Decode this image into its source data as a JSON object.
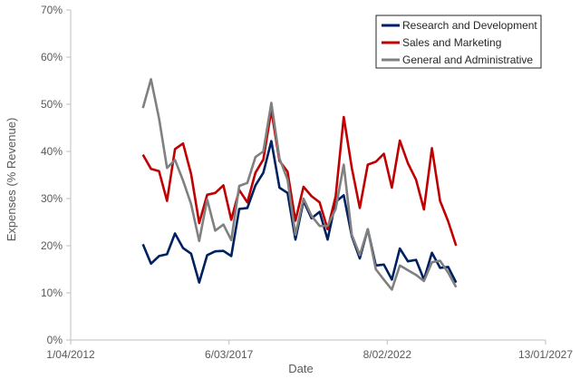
{
  "chart_data": {
    "type": "line",
    "title": "",
    "xlabel": "Date",
    "ylabel": "Expenses (% Revenue)",
    "x_axis": {
      "type": "date",
      "min": "2012-04-01",
      "max": "2027-01-13",
      "ticks": [
        "2012-04-01",
        "2017-03-06",
        "2022-02-08",
        "2027-01-13"
      ],
      "tick_labels": [
        "1/04/2012",
        "6/03/2017",
        "8/02/2022",
        "13/01/2027"
      ]
    },
    "y_axis": {
      "min": 0,
      "max": 70,
      "step": 10,
      "tick_labels": [
        "0%",
        "10%",
        "20%",
        "30%",
        "40%",
        "50%",
        "60%",
        "70%"
      ]
    },
    "grid": false,
    "legend_position": "top-right",
    "series": [
      {
        "name": "Research and Development",
        "color": "#002060",
        "points": [
          [
            "2014-07-01",
            20.3
          ],
          [
            "2014-10-01",
            16.2
          ],
          [
            "2015-01-01",
            17.8
          ],
          [
            "2015-04-01",
            18.2
          ],
          [
            "2015-07-01",
            22.6
          ],
          [
            "2015-10-01",
            19.5
          ],
          [
            "2016-01-01",
            18.3
          ],
          [
            "2016-04-01",
            12.2
          ],
          [
            "2016-07-01",
            18.0
          ],
          [
            "2016-10-01",
            18.8
          ],
          [
            "2017-01-01",
            18.9
          ],
          [
            "2017-04-01",
            17.8
          ],
          [
            "2017-07-01",
            27.8
          ],
          [
            "2017-10-01",
            28.0
          ],
          [
            "2018-01-01",
            32.8
          ],
          [
            "2018-04-01",
            35.5
          ],
          [
            "2018-07-01",
            42.2
          ],
          [
            "2018-10-01",
            32.3
          ],
          [
            "2019-01-01",
            31.2
          ],
          [
            "2019-04-01",
            21.3
          ],
          [
            "2019-07-01",
            29.5
          ],
          [
            "2019-10-01",
            25.8
          ],
          [
            "2020-01-01",
            27.2
          ],
          [
            "2020-04-01",
            21.3
          ],
          [
            "2020-07-01",
            29.3
          ],
          [
            "2020-10-01",
            30.7
          ],
          [
            "2021-01-01",
            22.0
          ],
          [
            "2021-04-01",
            17.3
          ],
          [
            "2021-07-01",
            23.5
          ],
          [
            "2021-10-01",
            15.8
          ],
          [
            "2022-01-01",
            16.0
          ],
          [
            "2022-04-01",
            12.8
          ],
          [
            "2022-07-01",
            19.4
          ],
          [
            "2022-10-01",
            16.7
          ],
          [
            "2023-01-01",
            17.0
          ],
          [
            "2023-04-01",
            12.8
          ],
          [
            "2023-07-01",
            18.5
          ],
          [
            "2023-10-01",
            15.3
          ],
          [
            "2024-01-01",
            15.5
          ],
          [
            "2024-04-01",
            12.2
          ]
        ]
      },
      {
        "name": "Sales and Marketing",
        "color": "#C00000",
        "points": [
          [
            "2014-07-01",
            39.3
          ],
          [
            "2014-10-01",
            36.3
          ],
          [
            "2015-01-01",
            35.8
          ],
          [
            "2015-04-01",
            29.5
          ],
          [
            "2015-07-01",
            40.5
          ],
          [
            "2015-10-01",
            41.7
          ],
          [
            "2016-01-01",
            35.2
          ],
          [
            "2016-04-01",
            24.8
          ],
          [
            "2016-07-01",
            30.8
          ],
          [
            "2016-10-01",
            31.2
          ],
          [
            "2017-01-01",
            32.8
          ],
          [
            "2017-04-01",
            25.5
          ],
          [
            "2017-07-01",
            31.8
          ],
          [
            "2017-10-01",
            29.2
          ],
          [
            "2018-01-01",
            35.5
          ],
          [
            "2018-04-01",
            38.3
          ],
          [
            "2018-07-01",
            48.7
          ],
          [
            "2018-10-01",
            38.0
          ],
          [
            "2019-01-01",
            35.7
          ],
          [
            "2019-04-01",
            25.3
          ],
          [
            "2019-07-01",
            32.5
          ],
          [
            "2019-10-01",
            30.5
          ],
          [
            "2020-01-01",
            29.2
          ],
          [
            "2020-04-01",
            23.5
          ],
          [
            "2020-07-01",
            30.5
          ],
          [
            "2020-10-01",
            47.3
          ],
          [
            "2021-01-01",
            36.5
          ],
          [
            "2021-04-01",
            28.0
          ],
          [
            "2021-07-01",
            37.2
          ],
          [
            "2021-10-01",
            37.8
          ],
          [
            "2022-01-01",
            39.5
          ],
          [
            "2022-04-01",
            32.3
          ],
          [
            "2022-07-01",
            42.3
          ],
          [
            "2022-10-01",
            37.5
          ],
          [
            "2023-01-01",
            34.0
          ],
          [
            "2023-04-01",
            27.7
          ],
          [
            "2023-07-01",
            40.7
          ],
          [
            "2023-10-01",
            29.5
          ],
          [
            "2024-01-01",
            25.2
          ],
          [
            "2024-04-01",
            20.0
          ]
        ]
      },
      {
        "name": "General and Administrative",
        "color": "#808080",
        "points": [
          [
            "2014-07-01",
            49.2
          ],
          [
            "2014-10-01",
            55.3
          ],
          [
            "2015-01-01",
            47.0
          ],
          [
            "2015-04-01",
            36.5
          ],
          [
            "2015-07-01",
            38.2
          ],
          [
            "2015-10-01",
            33.8
          ],
          [
            "2016-01-01",
            28.8
          ],
          [
            "2016-04-01",
            21.0
          ],
          [
            "2016-07-01",
            29.8
          ],
          [
            "2016-10-01",
            23.2
          ],
          [
            "2017-01-01",
            24.5
          ],
          [
            "2017-04-01",
            21.2
          ],
          [
            "2017-07-01",
            32.7
          ],
          [
            "2017-10-01",
            33.3
          ],
          [
            "2018-01-01",
            38.8
          ],
          [
            "2018-04-01",
            40.0
          ],
          [
            "2018-07-01",
            50.3
          ],
          [
            "2018-10-01",
            38.5
          ],
          [
            "2019-01-01",
            34.0
          ],
          [
            "2019-04-01",
            22.3
          ],
          [
            "2019-07-01",
            30.0
          ],
          [
            "2019-10-01",
            26.3
          ],
          [
            "2020-01-01",
            24.2
          ],
          [
            "2020-04-01",
            24.2
          ],
          [
            "2020-07-01",
            27.8
          ],
          [
            "2020-10-01",
            37.2
          ],
          [
            "2021-01-01",
            22.3
          ],
          [
            "2021-04-01",
            18.0
          ],
          [
            "2021-07-01",
            23.5
          ],
          [
            "2021-10-01",
            15.0
          ],
          [
            "2022-01-01",
            12.8
          ],
          [
            "2022-04-01",
            10.7
          ],
          [
            "2022-07-01",
            15.8
          ],
          [
            "2022-10-01",
            14.8
          ],
          [
            "2023-01-01",
            13.8
          ],
          [
            "2023-04-01",
            12.5
          ],
          [
            "2023-07-01",
            16.5
          ],
          [
            "2023-10-01",
            16.8
          ],
          [
            "2024-01-01",
            14.3
          ],
          [
            "2024-04-01",
            11.2
          ]
        ]
      }
    ]
  }
}
